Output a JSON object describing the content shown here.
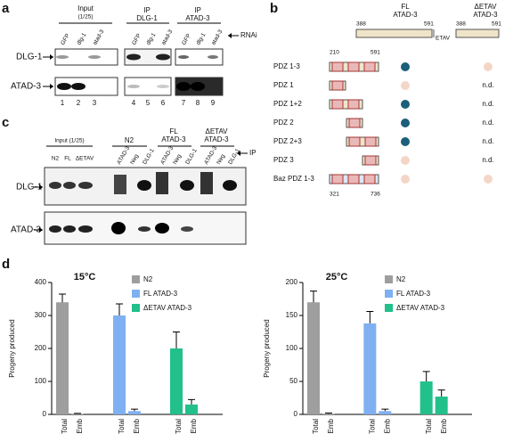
{
  "panels": {
    "a": {
      "label": "a",
      "input": "Input",
      "input_ratio": "(1/25)",
      "ip1": "IP",
      "ip1_target": "DLG-1",
      "ip2": "IP",
      "ip2_target": "ATAD-3",
      "lanes": [
        "GFP",
        "dlg-1",
        "atad-3",
        "GFP",
        "dlg-1",
        "atad-3",
        "GFP",
        "dlg-1",
        "atad-3"
      ],
      "rnai": "RNAi",
      "rows": [
        "DLG-1",
        "ATAD-3"
      ],
      "numbers": [
        "1",
        "2",
        "3",
        "4",
        "5",
        "6",
        "7",
        "8",
        "9"
      ]
    },
    "b": {
      "label": "b",
      "col1": [
        "FL",
        "ATAD-3"
      ],
      "col2": [
        "ΔETAV",
        "ATAD-3"
      ],
      "col1_range": [
        "388",
        "591"
      ],
      "col2_range": [
        "388",
        "591"
      ],
      "etav": "ETAV",
      "top_range": [
        "210",
        "591"
      ],
      "bottom_range": [
        "321",
        "736"
      ],
      "rows": [
        {
          "label": "PDZ 1-3",
          "delta": null
        },
        {
          "label": "PDZ 1",
          "delta": "n.d."
        },
        {
          "label": "PDZ 1+2",
          "delta": "n.d."
        },
        {
          "label": "PDZ 2",
          "delta": "n.d."
        },
        {
          "label": "PDZ 2+3",
          "delta": "n.d."
        },
        {
          "label": "PDZ 3",
          "delta": "n.d."
        },
        {
          "label": "Baz PDZ 1-3",
          "delta": null
        }
      ]
    },
    "c": {
      "label": "c",
      "input": "Input (1/25)",
      "input_lanes": [
        "N2",
        "FL",
        "ΔETAV"
      ],
      "g1": "N2",
      "g2": [
        "FL",
        "ATAD-3"
      ],
      "g3": [
        "ΔETAV",
        "ATAD-3"
      ],
      "lanes": [
        "ATAD-3",
        "Neg",
        "DLG-1",
        "ATAD-3",
        "Neg",
        "DLG-1",
        "ATAD-3",
        "Neg",
        "DLG-1"
      ],
      "ip": "IP",
      "rows": [
        "DLG-1",
        "ATAD-3"
      ]
    },
    "d": {
      "label": "d"
    }
  },
  "chart_data": [
    {
      "type": "bar",
      "title": "15°C",
      "y_label": "Progeny produced",
      "categories": [
        "Total",
        "Emb"
      ],
      "ylim": [
        0,
        400
      ],
      "yticks": [
        0,
        100,
        200,
        300,
        400
      ],
      "series": [
        {
          "name": "N2",
          "color": "#9e9e9e",
          "values": [
            340,
            2
          ],
          "errors": [
            25,
            1
          ]
        },
        {
          "name": "FL ATAD-3",
          "color": "#7fb0f2",
          "values": [
            300,
            10
          ],
          "errors": [
            35,
            6
          ]
        },
        {
          "name": "ΔETAV ATAD-3",
          "color": "#22c08a",
          "values": [
            200,
            30
          ],
          "errors": [
            50,
            15
          ]
        }
      ]
    },
    {
      "type": "bar",
      "title": "25°C",
      "y_label": "Progeny produced",
      "categories": [
        "Total",
        "Emb"
      ],
      "ylim": [
        0,
        200
      ],
      "yticks": [
        0,
        50,
        100,
        150,
        200
      ],
      "series": [
        {
          "name": "N2",
          "color": "#9e9e9e",
          "values": [
            170,
            1
          ],
          "errors": [
            17,
            1
          ]
        },
        {
          "name": "FL ATAD-3",
          "color": "#7fb0f2",
          "values": [
            138,
            5
          ],
          "errors": [
            18,
            3
          ]
        },
        {
          "name": "ΔETAV ATAD-3",
          "color": "#22c08a",
          "values": [
            50,
            27
          ],
          "errors": [
            15,
            10
          ]
        }
      ]
    }
  ]
}
